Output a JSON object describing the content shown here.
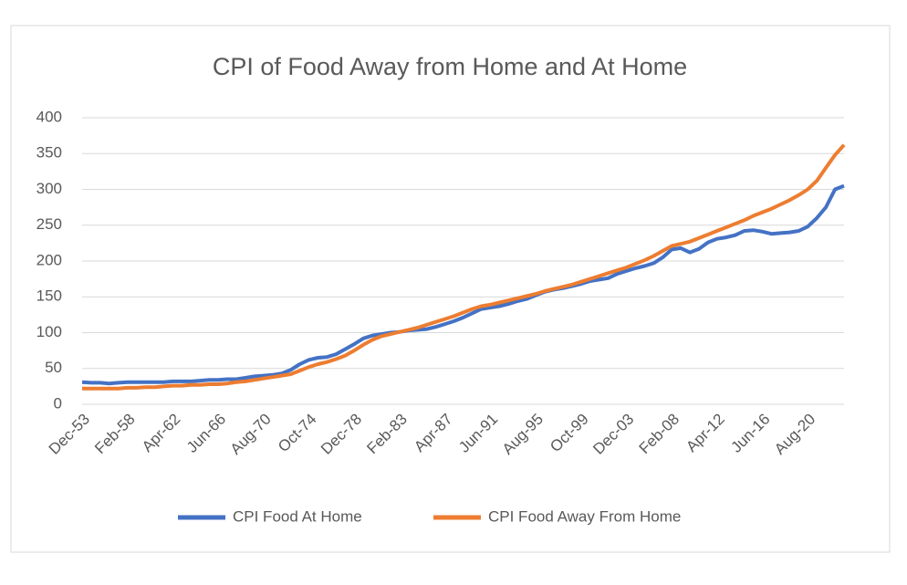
{
  "chart_data": {
    "type": "line",
    "title": "CPI of Food Away from Home and At Home",
    "categories": [
      "Dec-53",
      null,
      null,
      null,
      null,
      "Feb-58",
      null,
      null,
      null,
      null,
      "Apr-62",
      null,
      null,
      null,
      null,
      "Jun-66",
      null,
      null,
      null,
      null,
      "Aug-70",
      null,
      null,
      null,
      null,
      "Oct-74",
      null,
      null,
      null,
      null,
      "Dec-78",
      null,
      null,
      null,
      null,
      "Feb-83",
      null,
      null,
      null,
      null,
      "Apr-87",
      null,
      null,
      null,
      null,
      "Jun-91",
      null,
      null,
      null,
      null,
      "Aug-95",
      null,
      null,
      null,
      null,
      "Oct-99",
      null,
      null,
      null,
      null,
      "Dec-03",
      null,
      null,
      null,
      null,
      "Feb-08",
      null,
      null,
      null,
      null,
      "Apr-12",
      null,
      null,
      null,
      null,
      "Jun-16",
      null,
      null,
      null,
      null,
      "Aug-20",
      null,
      null,
      null,
      null
    ],
    "series": [
      {
        "name": "CPI Food At Home",
        "color": "#4472c4",
        "values": [
          31,
          30,
          30,
          29,
          30,
          31,
          31,
          31,
          31,
          31,
          32,
          32,
          32,
          33,
          34,
          34,
          35,
          35,
          37,
          39,
          40,
          41,
          43,
          48,
          56,
          62,
          65,
          66,
          70,
          77,
          84,
          92,
          96,
          98,
          100,
          101,
          103,
          104,
          105,
          108,
          112,
          116,
          121,
          127,
          133,
          135,
          137,
          140,
          144,
          147,
          152,
          157,
          160,
          162,
          165,
          168,
          172,
          174,
          176,
          182,
          186,
          190,
          193,
          197,
          205,
          216,
          218,
          212,
          217,
          226,
          231,
          233,
          236,
          242,
          243,
          241,
          238,
          239,
          240,
          242,
          248,
          260,
          275,
          300,
          305
        ]
      },
      {
        "name": "CPI Food Away From Home",
        "color": "#ed7d31",
        "values": [
          22,
          22,
          22,
          22,
          22,
          23,
          23,
          24,
          24,
          25,
          26,
          26,
          27,
          27,
          28,
          28,
          29,
          31,
          32,
          34,
          36,
          38,
          40,
          42,
          47,
          52,
          56,
          59,
          63,
          68,
          75,
          83,
          90,
          95,
          98,
          101,
          104,
          107,
          111,
          115,
          119,
          123,
          128,
          133,
          137,
          139,
          142,
          145,
          148,
          151,
          154,
          158,
          161,
          164,
          167,
          171,
          175,
          179,
          183,
          187,
          191,
          196,
          201,
          207,
          214,
          221,
          224,
          227,
          232,
          237,
          242,
          247,
          252,
          257,
          263,
          268,
          273,
          279,
          285,
          292,
          300,
          312,
          330,
          348,
          362
        ]
      }
    ],
    "ylim": [
      0,
      400
    ],
    "yticks": [
      0,
      50,
      100,
      150,
      200,
      250,
      300,
      350,
      400
    ],
    "grid": true,
    "legend": "bottom"
  }
}
